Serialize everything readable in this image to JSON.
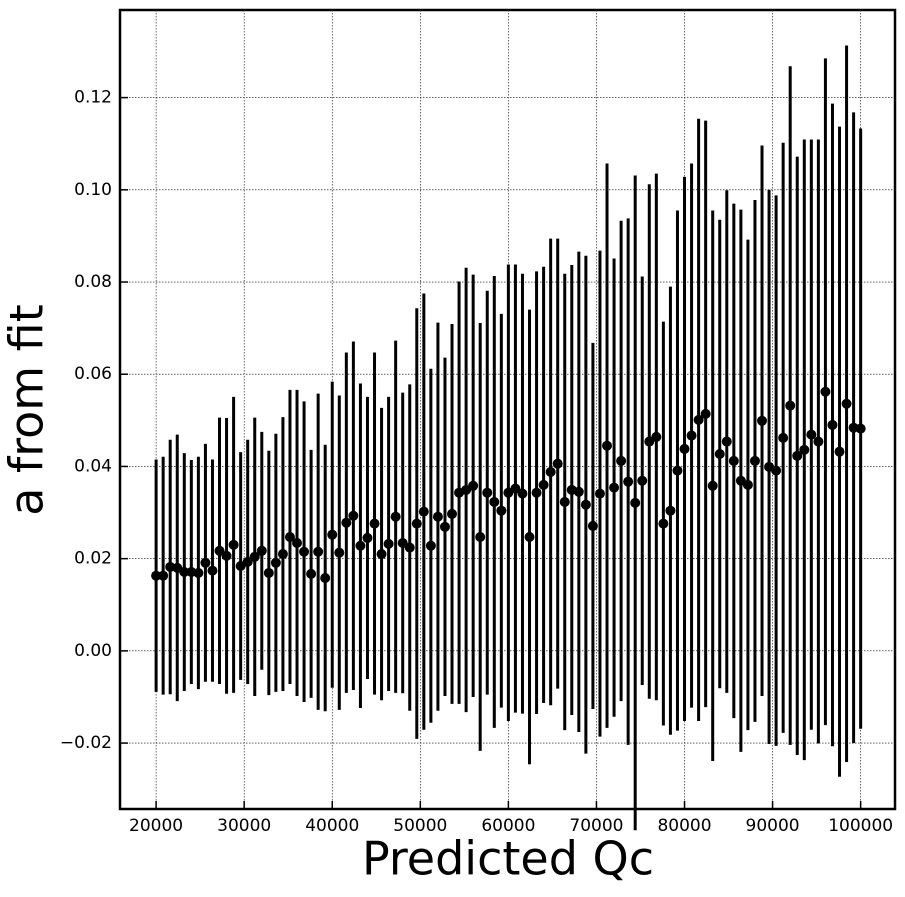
{
  "chart_data": {
    "type": "errorbar",
    "xlabel": "Predicted Qc",
    "ylabel": "a from fit",
    "color": "#000000",
    "grid": true,
    "xlim": [
      15900,
      103900
    ],
    "ylim": [
      -0.0343,
      0.139
    ],
    "xticks": [
      20000,
      30000,
      40000,
      50000,
      60000,
      70000,
      80000,
      90000,
      100000
    ],
    "yticks": [
      {
        "value": -0.02,
        "label": "−0.02"
      },
      {
        "value": 0,
        "label": "0.00"
      },
      0.02,
      0.04,
      0.06,
      0.08,
      {
        "value": 0.1,
        "label": "0.10"
      },
      0.12
    ],
    "x": [
      20000,
      20800,
      21600,
      22400,
      23200,
      24000,
      24800,
      25600,
      26400,
      27200,
      28000,
      28800,
      29600,
      30400,
      31200,
      32000,
      32800,
      33600,
      34400,
      35200,
      36000,
      36800,
      37600,
      38400,
      39200,
      40000,
      40800,
      41600,
      42400,
      43200,
      44000,
      44800,
      45600,
      46400,
      47200,
      48000,
      48800,
      49600,
      50400,
      51200,
      52000,
      52800,
      53600,
      54400,
      55200,
      56000,
      56800,
      57600,
      58400,
      59200,
      60000,
      60800,
      61600,
      62400,
      63200,
      64000,
      64800,
      65600,
      66400,
      67200,
      68000,
      68800,
      69600,
      70400,
      71200,
      72000,
      72800,
      73600,
      74400,
      75200,
      76000,
      76800,
      77600,
      78400,
      79200,
      80000,
      80800,
      81600,
      82400,
      83200,
      84000,
      84800,
      85600,
      86400,
      87200,
      88000,
      88800,
      89600,
      90400,
      91200,
      92000,
      92800,
      93600,
      94400,
      95200,
      96000,
      96800,
      97600,
      98400,
      99200,
      100000
    ],
    "values": [
      0.0163,
      0.0163,
      0.0182,
      0.018,
      0.0171,
      0.0171,
      0.0169,
      0.0191,
      0.0174,
      0.0217,
      0.0206,
      0.023,
      0.0184,
      0.0193,
      0.0204,
      0.0217,
      0.0169,
      0.0191,
      0.021,
      0.0247,
      0.0234,
      0.0215,
      0.0167,
      0.0215,
      0.0158,
      0.0252,
      0.0213,
      0.0278,
      0.0293,
      0.0228,
      0.0245,
      0.0276,
      0.021,
      0.0232,
      0.0291,
      0.0234,
      0.0224,
      0.0276,
      0.0302,
      0.0228,
      0.0291,
      0.0269,
      0.0297,
      0.0343,
      0.0349,
      0.0358,
      0.0247,
      0.0343,
      0.0323,
      0.0304,
      0.0343,
      0.0352,
      0.0341,
      0.0247,
      0.0343,
      0.036,
      0.0388,
      0.0406,
      0.0323,
      0.0349,
      0.0345,
      0.0317,
      0.0271,
      0.0341,
      0.0445,
      0.0354,
      0.0412,
      0.0367,
      0.0321,
      0.0369,
      0.0454,
      0.0464,
      0.0276,
      0.0304,
      0.0391,
      0.0438,
      0.0467,
      0.0501,
      0.0514,
      0.0358,
      0.0427,
      0.0454,
      0.0412,
      0.0369,
      0.036,
      0.0412,
      0.0499,
      0.0399,
      0.0391,
      0.0462,
      0.0532,
      0.0423,
      0.0436,
      0.0469,
      0.0454,
      0.0562,
      0.049,
      0.0432,
      0.0536,
      0.0484,
      0.0482
    ],
    "errors": [
      0.0252,
      0.0258,
      0.0276,
      0.0289,
      0.0258,
      0.0243,
      0.0252,
      0.0258,
      0.0241,
      0.0289,
      0.0299,
      0.0321,
      0.0247,
      0.0265,
      0.0302,
      0.0258,
      0.0265,
      0.028,
      0.0297,
      0.0319,
      0.0332,
      0.0326,
      0.0269,
      0.0343,
      0.0289,
      0.0332,
      0.0341,
      0.0369,
      0.0378,
      0.0352,
      0.0306,
      0.0371,
      0.0317,
      0.0319,
      0.0382,
      0.0326,
      0.0354,
      0.0467,
      0.0473,
      0.0384,
      0.0421,
      0.0367,
      0.0412,
      0.0458,
      0.0482,
      0.0458,
      0.0464,
      0.0438,
      0.049,
      0.0427,
      0.0495,
      0.0486,
      0.0477,
      0.0493,
      0.048,
      0.0473,
      0.0506,
      0.0488,
      0.0495,
      0.0488,
      0.0521,
      0.054,
      0.0397,
      0.0527,
      0.0612,
      0.0497,
      0.0521,
      0.0571,
      0.071,
      0.0443,
      0.0558,
      0.0571,
      0.0438,
      0.0486,
      0.0564,
      0.059,
      0.059,
      0.0653,
      0.0636,
      0.0597,
      0.0508,
      0.0545,
      0.0558,
      0.0588,
      0.0532,
      0.0566,
      0.0597,
      0.0601,
      0.0597,
      0.064,
      0.0736,
      0.0649,
      0.0673,
      0.064,
      0.0655,
      0.0723,
      0.0697,
      0.0705,
      0.0777,
      0.0684,
      0.0651
    ]
  }
}
